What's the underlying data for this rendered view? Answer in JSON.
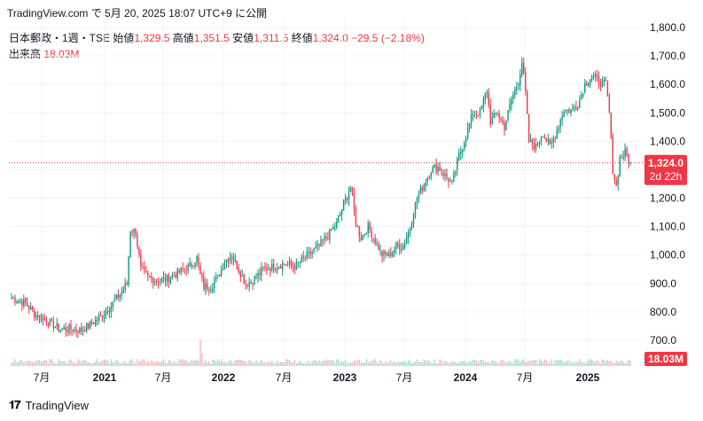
{
  "header": {
    "text": "TradingView.com で 5月 20, 2025 18:07 UTC+9 に公開"
  },
  "legend": {
    "symbol": "日本郵政・1週・TSE",
    "open_label": "始値",
    "open": "1,329.5",
    "high_label": "高値",
    "high": "1,351.5",
    "low_label": "安値",
    "low": "1,311.5",
    "close_label": "終値",
    "close": "1,324.0",
    "change": "−29.5 (−2.18%)"
  },
  "volume_legend": {
    "label": "出来高",
    "value": "18.03M"
  },
  "price_tag": {
    "price": "1,324.0",
    "countdown": "2d 22h"
  },
  "volume_tag": {
    "value": "18.03M"
  },
  "footer": {
    "brand": "TradingView"
  },
  "colors": {
    "up": "#089981",
    "down": "#f23645",
    "grid": "#f0f3fa"
  },
  "chart_data": {
    "type": "candlestick",
    "y_ticks": [
      "1,800.0",
      "1,700.0",
      "1,600.0",
      "1,500.0",
      "1,400.0",
      "1,300.0",
      "1,200.0",
      "1,100.0",
      "1,000.0",
      "900.0",
      "800.0",
      "700.0"
    ],
    "y_values": [
      1800,
      1700,
      1600,
      1500,
      1400,
      1300,
      1200,
      1100,
      1000,
      900,
      800,
      700
    ],
    "x_ticks": [
      {
        "label": "7月",
        "bold": false
      },
      {
        "label": "2021",
        "bold": true
      },
      {
        "label": "7月",
        "bold": false
      },
      {
        "label": "2022",
        "bold": true
      },
      {
        "label": "7月",
        "bold": false
      },
      {
        "label": "2023",
        "bold": true
      },
      {
        "label": "7月",
        "bold": false
      },
      {
        "label": "2024",
        "bold": true
      },
      {
        "label": "7月",
        "bold": false
      },
      {
        "label": "2025",
        "bold": true
      }
    ],
    "last_price": 1324.0,
    "series_keypoints": [
      [
        0,
        850
      ],
      [
        8,
        830
      ],
      [
        14,
        790
      ],
      [
        22,
        760
      ],
      [
        28,
        740
      ],
      [
        34,
        740
      ],
      [
        40,
        735
      ],
      [
        46,
        760
      ],
      [
        52,
        790
      ],
      [
        58,
        830
      ],
      [
        63,
        870
      ],
      [
        66,
        900
      ],
      [
        68,
        1090
      ],
      [
        71,
        1080
      ],
      [
        74,
        950
      ],
      [
        78,
        920
      ],
      [
        84,
        910
      ],
      [
        90,
        920
      ],
      [
        96,
        940
      ],
      [
        102,
        960
      ],
      [
        106,
        990
      ],
      [
        108,
        930
      ],
      [
        110,
        890
      ],
      [
        114,
        890
      ],
      [
        118,
        920
      ],
      [
        122,
        980
      ],
      [
        126,
        1000
      ],
      [
        130,
        950
      ],
      [
        134,
        900
      ],
      [
        138,
        910
      ],
      [
        144,
        950
      ],
      [
        150,
        960
      ],
      [
        156,
        970
      ],
      [
        162,
        960
      ],
      [
        168,
        990
      ],
      [
        174,
        1020
      ],
      [
        180,
        1060
      ],
      [
        186,
        1110
      ],
      [
        190,
        1180
      ],
      [
        194,
        1240
      ],
      [
        197,
        1110
      ],
      [
        200,
        1060
      ],
      [
        204,
        1100
      ],
      [
        208,
        1050
      ],
      [
        212,
        1000
      ],
      [
        216,
        1000
      ],
      [
        220,
        1030
      ],
      [
        224,
        1030
      ],
      [
        228,
        1100
      ],
      [
        232,
        1200
      ],
      [
        236,
        1250
      ],
      [
        240,
        1300
      ],
      [
        244,
        1310
      ],
      [
        248,
        1280
      ],
      [
        252,
        1250
      ],
      [
        256,
        1350
      ],
      [
        260,
        1420
      ],
      [
        264,
        1500
      ],
      [
        268,
        1500
      ],
      [
        272,
        1580
      ],
      [
        274,
        1470
      ],
      [
        278,
        1500
      ],
      [
        282,
        1450
      ],
      [
        286,
        1550
      ],
      [
        290,
        1610
      ],
      [
        292,
        1680
      ],
      [
        294,
        1570
      ],
      [
        296,
        1400
      ],
      [
        300,
        1380
      ],
      [
        304,
        1430
      ],
      [
        308,
        1380
      ],
      [
        312,
        1440
      ],
      [
        316,
        1510
      ],
      [
        320,
        1510
      ],
      [
        324,
        1530
      ],
      [
        328,
        1600
      ],
      [
        332,
        1630
      ],
      [
        336,
        1610
      ],
      [
        340,
        1600
      ],
      [
        342,
        1500
      ],
      [
        344,
        1300
      ],
      [
        346,
        1240
      ],
      [
        348,
        1340
      ],
      [
        351,
        1360
      ],
      [
        354,
        1324
      ]
    ]
  }
}
